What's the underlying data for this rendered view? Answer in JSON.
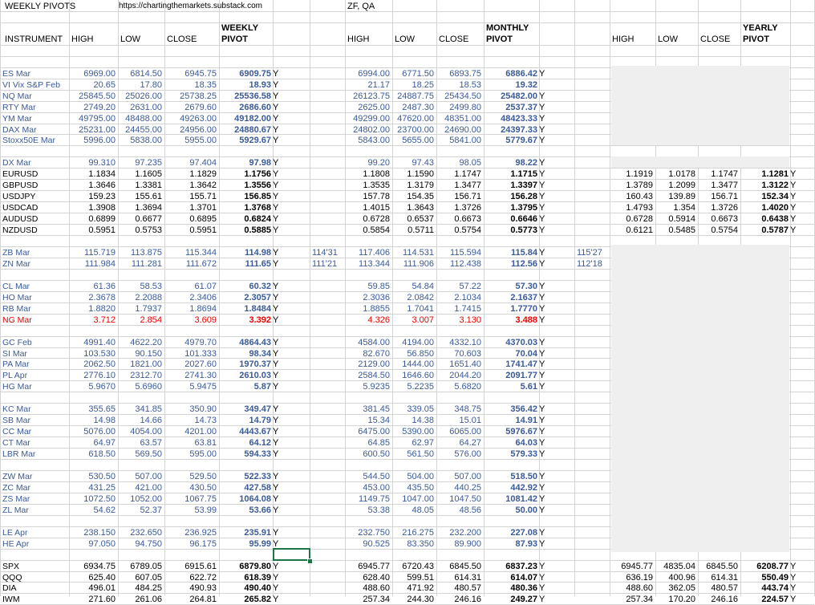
{
  "sheet": {
    "title_cell": "WEEKLY PIVOTS",
    "url_cell": "https://chartingthemarkets.substack.com",
    "tag_cell": "ZF, QA"
  },
  "headers": {
    "instrument": "INSTRUMENT",
    "weekly": {
      "high": "HIGH",
      "low": "LOW",
      "close": "CLOSE",
      "pivot_top": "WEEKLY",
      "pivot": "PIVOT"
    },
    "monthly": {
      "high": "HIGH",
      "low": "LOW",
      "close": "CLOSE",
      "pivot_top": "MONTHLY",
      "pivot": "PIVOT"
    },
    "yearly": {
      "high": "HIGH",
      "low": "LOW",
      "close": "CLOSE",
      "pivot_top": "YEARLY",
      "pivot": "PIVOT"
    }
  },
  "rows": [
    {
      "r": 5,
      "style": "blue",
      "name": "ES Mar",
      "w": [
        "6969.00",
        "6814.50",
        "6945.75",
        "6909.75",
        "Y"
      ],
      "m": [
        "6994.00",
        "6771.50",
        "6893.75",
        "6886.42",
        "Y"
      ]
    },
    {
      "r": 6,
      "style": "blue",
      "name": "VI Vix S&P Feb",
      "w": [
        "20.65",
        "17.80",
        "18.35",
        "18.93",
        "Y"
      ],
      "m": [
        "21.17",
        "18.25",
        "18.53",
        "19.32",
        ""
      ]
    },
    {
      "r": 7,
      "style": "blue",
      "name": "NQ Mar",
      "w": [
        "25845.50",
        "25026.00",
        "25738.25",
        "25536.58",
        "Y"
      ],
      "m": [
        "26123.75",
        "24887.75",
        "25434.50",
        "25482.00",
        "Y"
      ]
    },
    {
      "r": 8,
      "style": "blue",
      "name": "RTY Mar",
      "w": [
        "2749.20",
        "2631.00",
        "2679.60",
        "2686.60",
        "Y"
      ],
      "m": [
        "2625.00",
        "2487.30",
        "2499.80",
        "2537.37",
        "Y"
      ]
    },
    {
      "r": 9,
      "style": "blue",
      "name": "YM Mar",
      "w": [
        "49795.00",
        "48488.00",
        "49263.00",
        "49182.00",
        "Y"
      ],
      "m": [
        "49299.00",
        "47620.00",
        "48351.00",
        "48423.33",
        "Y"
      ]
    },
    {
      "r": 10,
      "style": "blue",
      "name": "DAX Mar",
      "w": [
        "25231.00",
        "24455.00",
        "24956.00",
        "24880.67",
        "Y"
      ],
      "m": [
        "24802.00",
        "23700.00",
        "24690.00",
        "24397.33",
        "Y"
      ]
    },
    {
      "r": 11,
      "style": "blue",
      "name": "Stoxx50E Mar",
      "w": [
        "5996.00",
        "5838.00",
        "5955.00",
        "5929.67",
        "Y"
      ],
      "m": [
        "5843.00",
        "5655.00",
        "5841.00",
        "5779.67",
        "Y"
      ]
    },
    {
      "r": 13,
      "style": "blue",
      "name": "DX Mar",
      "w": [
        "99.310",
        "97.235",
        "97.404",
        "97.98",
        "Y"
      ],
      "m": [
        "99.20",
        "97.43",
        "98.05",
        "98.22",
        "Y"
      ]
    },
    {
      "r": 14,
      "style": "dark",
      "name": "EURUSD",
      "w": [
        "1.1834",
        "1.1605",
        "1.1829",
        "1.1756",
        "Y"
      ],
      "m": [
        "1.1808",
        "1.1590",
        "1.1747",
        "1.1715",
        "Y"
      ],
      "y": [
        "1.1919",
        "1.0178",
        "1.1747",
        "1.1281",
        "Y"
      ]
    },
    {
      "r": 15,
      "style": "dark",
      "name": "GBPUSD",
      "w": [
        "1.3646",
        "1.3381",
        "1.3642",
        "1.3556",
        "Y"
      ],
      "m": [
        "1.3535",
        "1.3179",
        "1.3477",
        "1.3397",
        "Y"
      ],
      "y": [
        "1.3789",
        "1.2099",
        "1.3477",
        "1.3122",
        "Y"
      ]
    },
    {
      "r": 16,
      "style": "dark",
      "name": "USDJPY",
      "w": [
        "159.23",
        "155.61",
        "155.71",
        "156.85",
        "Y"
      ],
      "m": [
        "157.78",
        "154.35",
        "156.71",
        "156.28",
        "Y"
      ],
      "y": [
        "160.43",
        "139.89",
        "156.71",
        "152.34",
        "Y"
      ]
    },
    {
      "r": 17,
      "style": "dark",
      "name": "USDCAD",
      "w": [
        "1.3908",
        "1.3694",
        "1.3701",
        "1.3768",
        "Y"
      ],
      "m": [
        "1.4015",
        "1.3643",
        "1.3726",
        "1.3795",
        "Y"
      ],
      "y": [
        "1.4793",
        "1.354",
        "1.3726",
        "1.4020",
        "Y"
      ]
    },
    {
      "r": 18,
      "style": "dark",
      "name": "AUDUSD",
      "w": [
        "0.6899",
        "0.6677",
        "0.6895",
        "0.6824",
        "Y"
      ],
      "m": [
        "0.6728",
        "0.6537",
        "0.6673",
        "0.6646",
        "Y"
      ],
      "y": [
        "0.6728",
        "0.5914",
        "0.6673",
        "0.6438",
        "Y"
      ]
    },
    {
      "r": 19,
      "style": "dark",
      "name": "NZDUSD",
      "w": [
        "0.5951",
        "0.5753",
        "0.5951",
        "0.5885",
        "Y"
      ],
      "m": [
        "0.5854",
        "0.5711",
        "0.5754",
        "0.5773",
        "Y"
      ],
      "y": [
        "0.6121",
        "0.5485",
        "0.5754",
        "0.5787",
        "Y"
      ]
    },
    {
      "r": 21,
      "style": "blue",
      "name": "ZB Mar",
      "w": [
        "115.719",
        "113.875",
        "115.344",
        "114.98",
        "Y"
      ],
      "wx": "114'31",
      "m": [
        "117.406",
        "114.531",
        "115.594",
        "115.84",
        "Y"
      ],
      "mx": "115'27"
    },
    {
      "r": 22,
      "style": "blue",
      "name": "ZN Mar",
      "w": [
        "111.984",
        "111.281",
        "111.672",
        "111.65",
        "Y"
      ],
      "wx": "111'21",
      "m": [
        "113.344",
        "111.906",
        "112.438",
        "112.56",
        "Y"
      ],
      "mx": "112'18"
    },
    {
      "r": 24,
      "style": "blue",
      "name": "CL Mar",
      "w": [
        "61.36",
        "58.53",
        "61.07",
        "60.32",
        "Y"
      ],
      "m": [
        "59.85",
        "54.84",
        "57.22",
        "57.30",
        "Y"
      ]
    },
    {
      "r": 25,
      "style": "blue",
      "name": "HO Mar",
      "w": [
        "2.3678",
        "2.2088",
        "2.3406",
        "2.3057",
        "Y"
      ],
      "m": [
        "2.3036",
        "2.0842",
        "2.1034",
        "2.1637",
        "Y"
      ]
    },
    {
      "r": 26,
      "style": "blue",
      "name": "RB Mar",
      "w": [
        "1.8820",
        "1.7937",
        "1.8694",
        "1.8484",
        "Y"
      ],
      "m": [
        "1.8855",
        "1.7041",
        "1.7415",
        "1.7770",
        "Y"
      ]
    },
    {
      "r": 27,
      "style": "red",
      "name": "NG Mar",
      "w": [
        "3.712",
        "2.854",
        "3.609",
        "3.392",
        "Y"
      ],
      "m": [
        "4.326",
        "3.007",
        "3.130",
        "3.488",
        "Y"
      ]
    },
    {
      "r": 29,
      "style": "blue",
      "name": "GC Feb",
      "w": [
        "4991.40",
        "4622.20",
        "4979.70",
        "4864.43",
        "Y"
      ],
      "m": [
        "4584.00",
        "4194.00",
        "4332.10",
        "4370.03",
        "Y"
      ]
    },
    {
      "r": 30,
      "style": "blue",
      "name": "SI Mar",
      "w": [
        "103.530",
        "90.150",
        "101.333",
        "98.34",
        "Y"
      ],
      "m": [
        "82.670",
        "56.850",
        "70.603",
        "70.04",
        "Y"
      ]
    },
    {
      "r": 31,
      "style": "blue",
      "name": "PA Mar",
      "w": [
        "2062.50",
        "1821.00",
        "2027.60",
        "1970.37",
        "Y"
      ],
      "m": [
        "2129.00",
        "1444.00",
        "1651.40",
        "1741.47",
        "Y"
      ]
    },
    {
      "r": 32,
      "style": "blue",
      "name": "PL Apr",
      "w": [
        "2776.10",
        "2312.70",
        "2741.30",
        "2610.03",
        "Y"
      ],
      "m": [
        "2584.50",
        "1646.60",
        "2044.20",
        "2091.77",
        "Y"
      ]
    },
    {
      "r": 33,
      "style": "blue",
      "name": "HG Mar",
      "w": [
        "5.9670",
        "5.6960",
        "5.9475",
        "5.87",
        "Y"
      ],
      "m": [
        "5.9235",
        "5.2235",
        "5.6820",
        "5.61",
        "Y"
      ]
    },
    {
      "r": 35,
      "style": "blue",
      "name": "KC Mar",
      "w": [
        "355.65",
        "341.85",
        "350.90",
        "349.47",
        "Y"
      ],
      "m": [
        "381.45",
        "339.05",
        "348.75",
        "356.42",
        "Y"
      ]
    },
    {
      "r": 36,
      "style": "blue",
      "name": "SB Mar",
      "w": [
        "14.98",
        "14.66",
        "14.73",
        "14.79",
        "Y"
      ],
      "m": [
        "15.34",
        "14.38",
        "15.01",
        "14.91",
        "Y"
      ]
    },
    {
      "r": 37,
      "style": "blue",
      "name": "CC Mar",
      "w": [
        "5076.00",
        "4054.00",
        "4201.00",
        "4443.67",
        "Y"
      ],
      "m": [
        "6475.00",
        "5390.00",
        "6065.00",
        "5976.67",
        "Y"
      ]
    },
    {
      "r": 38,
      "style": "blue",
      "name": "CT Mar",
      "w": [
        "64.97",
        "63.57",
        "63.81",
        "64.12",
        "Y"
      ],
      "m": [
        "64.85",
        "62.97",
        "64.27",
        "64.03",
        "Y"
      ]
    },
    {
      "r": 39,
      "style": "blue",
      "name": "LBR Mar",
      "w": [
        "618.50",
        "569.50",
        "595.00",
        "594.33",
        "Y"
      ],
      "m": [
        "600.50",
        "561.50",
        "576.00",
        "579.33",
        "Y"
      ]
    },
    {
      "r": 41,
      "style": "blue",
      "name": "ZW Mar",
      "w": [
        "530.50",
        "507.00",
        "529.50",
        "522.33",
        "Y"
      ],
      "m": [
        "544.50",
        "504.00",
        "507.00",
        "518.50",
        "Y"
      ]
    },
    {
      "r": 42,
      "style": "blue",
      "name": "ZC Mar",
      "w": [
        "431.25",
        "421.00",
        "430.50",
        "427.58",
        "Y"
      ],
      "m": [
        "453.00",
        "435.50",
        "440.25",
        "442.92",
        "Y"
      ]
    },
    {
      "r": 43,
      "style": "blue",
      "name": "ZS Mar",
      "w": [
        "1072.50",
        "1052.00",
        "1067.75",
        "1064.08",
        "Y"
      ],
      "m": [
        "1149.75",
        "1047.00",
        "1047.50",
        "1081.42",
        "Y"
      ]
    },
    {
      "r": 44,
      "style": "blue",
      "name": "ZL Mar",
      "w": [
        "54.62",
        "52.37",
        "53.99",
        "53.66",
        "Y"
      ],
      "m": [
        "53.38",
        "48.05",
        "48.56",
        "50.00",
        "Y"
      ]
    },
    {
      "r": 46,
      "style": "blue",
      "name": "LE Apr",
      "w": [
        "238.150",
        "232.650",
        "236.925",
        "235.91",
        "Y"
      ],
      "m": [
        "232.750",
        "216.275",
        "232.200",
        "227.08",
        "Y"
      ]
    },
    {
      "r": 47,
      "style": "blue",
      "name": "HE Apr",
      "w": [
        "97.050",
        "94.750",
        "96.175",
        "95.99",
        "Y"
      ],
      "m": [
        "90.525",
        "83.350",
        "89.900",
        "87.93",
        "Y"
      ]
    },
    {
      "r": 49,
      "style": "dark",
      "name": "SPX",
      "w": [
        "6934.75",
        "6789.05",
        "6915.61",
        "6879.80",
        "Y"
      ],
      "m": [
        "6945.77",
        "6720.43",
        "6845.50",
        "6837.23",
        "Y"
      ],
      "y": [
        "6945.77",
        "4835.04",
        "6845.50",
        "6208.77",
        "Y"
      ]
    },
    {
      "r": 50,
      "style": "dark",
      "name": "QQQ",
      "w": [
        "625.40",
        "607.05",
        "622.72",
        "618.39",
        "Y"
      ],
      "m": [
        "628.40",
        "599.51",
        "614.31",
        "614.07",
        "Y"
      ],
      "y": [
        "636.19",
        "400.96",
        "614.31",
        "550.49",
        "Y"
      ]
    },
    {
      "r": 51,
      "style": "dark",
      "name": "DIA",
      "w": [
        "496.01",
        "484.25",
        "490.93",
        "490.40",
        "Y"
      ],
      "m": [
        "488.60",
        "471.92",
        "480.57",
        "480.36",
        "Y"
      ],
      "y": [
        "488.60",
        "362.05",
        "480.57",
        "443.74",
        "Y"
      ]
    },
    {
      "r": 52,
      "style": "dark",
      "name": "IWM",
      "w": [
        "271.60",
        "261.06",
        "264.81",
        "265.82",
        "Y"
      ],
      "m": [
        "257.34",
        "244.30",
        "246.16",
        "249.27",
        "Y"
      ],
      "y": [
        "257.34",
        "170.20",
        "246.16",
        "224.57",
        "Y"
      ]
    }
  ]
}
